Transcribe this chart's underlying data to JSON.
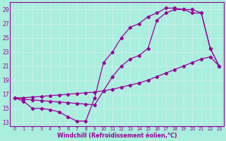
{
  "xlabel": "Windchill (Refroidissement éolien,°C)",
  "bg_color": "#aaeedd",
  "grid_color": "#bbddcc",
  "line_color": "#990099",
  "xlim": [
    -0.5,
    23.5
  ],
  "ylim": [
    12.5,
    30.0
  ],
  "xticks": [
    0,
    1,
    2,
    3,
    4,
    5,
    6,
    7,
    8,
    9,
    10,
    11,
    12,
    13,
    14,
    15,
    16,
    17,
    18,
    19,
    20,
    21,
    22,
    23
  ],
  "yticks": [
    13,
    15,
    17,
    19,
    21,
    23,
    25,
    27,
    29
  ],
  "line1_x": [
    0,
    1,
    2,
    3,
    4,
    5,
    6,
    7,
    8,
    9,
    10,
    11,
    12,
    13,
    14,
    15,
    16,
    17,
    18,
    19,
    20,
    21,
    22,
    23
  ],
  "line1_y": [
    16.5,
    16.0,
    15.0,
    15.0,
    14.8,
    14.5,
    13.8,
    13.2,
    13.2,
    16.5,
    21.5,
    23.0,
    25.0,
    26.5,
    27.0,
    28.0,
    28.5,
    29.2,
    29.2,
    29.0,
    28.5,
    28.5,
    23.5,
    21.0
  ],
  "line2_x": [
    0,
    1,
    2,
    3,
    4,
    5,
    6,
    7,
    8,
    9,
    10,
    11,
    12,
    13,
    14,
    15,
    16,
    17,
    18,
    19,
    20,
    21,
    22,
    23
  ],
  "line2_y": [
    16.5,
    16.3,
    16.2,
    16.1,
    16.0,
    15.9,
    15.8,
    15.7,
    15.6,
    15.5,
    17.5,
    19.5,
    21.0,
    22.0,
    22.5,
    23.5,
    27.5,
    28.5,
    29.0,
    29.0,
    29.0,
    28.5,
    23.5,
    21.0
  ],
  "line3_x": [
    0,
    1,
    2,
    3,
    4,
    5,
    6,
    7,
    8,
    9,
    10,
    11,
    12,
    13,
    14,
    15,
    16,
    17,
    18,
    19,
    20,
    21,
    22,
    23
  ],
  "line3_y": [
    16.5,
    16.5,
    16.6,
    16.7,
    16.8,
    16.9,
    17.0,
    17.1,
    17.2,
    17.3,
    17.5,
    17.7,
    18.0,
    18.3,
    18.6,
    19.0,
    19.5,
    20.0,
    20.5,
    21.0,
    21.5,
    22.0,
    22.3,
    21.0
  ]
}
